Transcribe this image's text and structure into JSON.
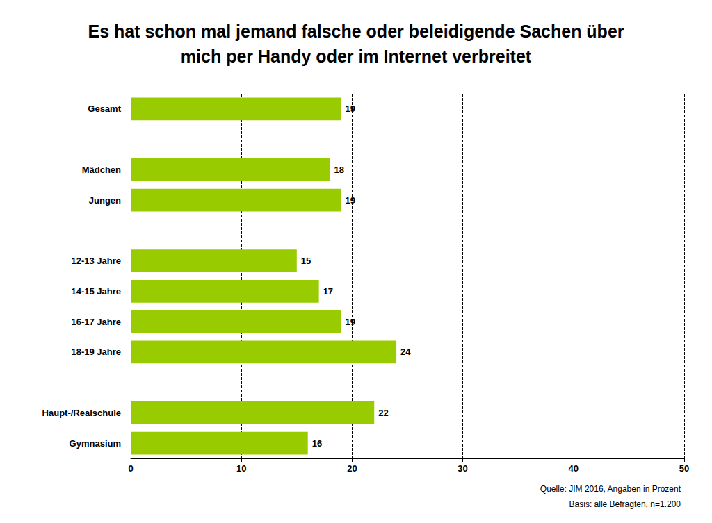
{
  "chart_data": {
    "type": "bar",
    "orientation": "horizontal",
    "title": "Es hat schon mal jemand falsche oder beleidigende Sachen über\nmich per Handy oder im Internet verbreitet",
    "categories": [
      "Gesamt",
      null,
      "Mädchen",
      "Jungen",
      null,
      "12-13 Jahre",
      "14-15 Jahre",
      "16-17 Jahre",
      "18-19 Jahre",
      null,
      "Haupt-/Realschule",
      "Gymnasium"
    ],
    "values": [
      19,
      null,
      18,
      19,
      null,
      15,
      17,
      19,
      24,
      null,
      22,
      16
    ],
    "color": "#99cc00",
    "xlim": [
      0,
      50
    ],
    "xticks": [
      0,
      10,
      20,
      30,
      40,
      50
    ],
    "grid": true,
    "data_labels": true,
    "annotations": [
      "Quelle: JIM 2016, Angaben in Prozent",
      "Basis: alle Befragten, n=1.200"
    ]
  }
}
